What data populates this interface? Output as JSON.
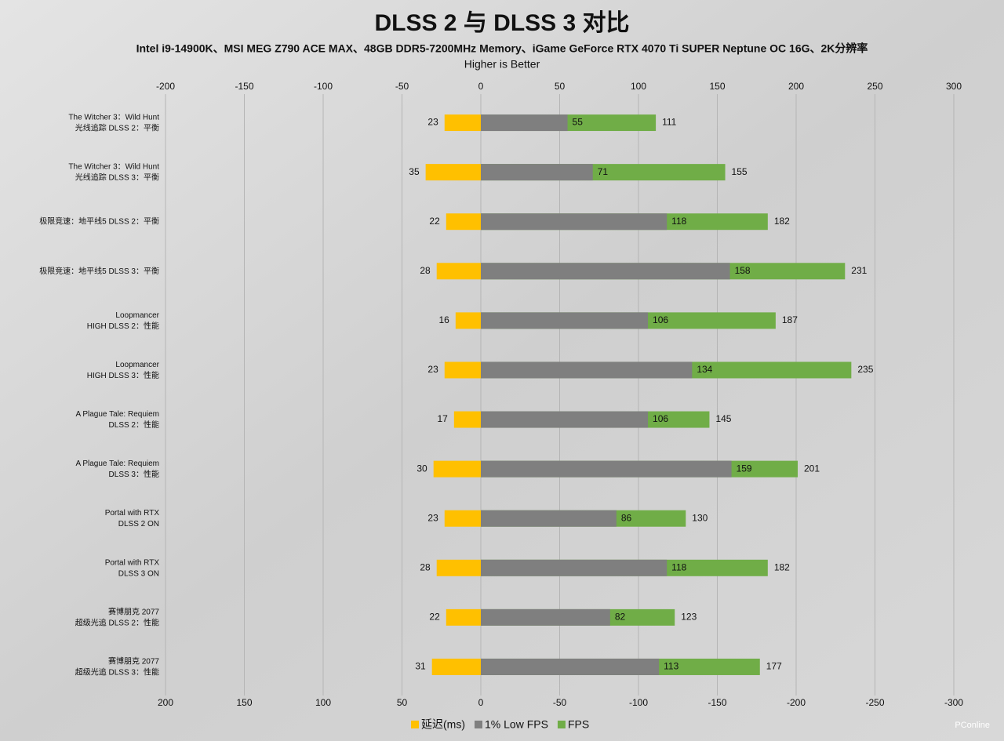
{
  "chart_data": {
    "type": "bar",
    "title": "DLSS 2 与 DLSS 3 对比",
    "subtitle": "Intel i9-14900K、MSI MEG Z790 ACE MAX、48GB DDR5-7200MHz Memory、iGame GeForce RTX 4070 Ti SUPER Neptune OC 16G、2K分辨率",
    "note": "Higher is Better",
    "watermark": "PConline",
    "categories": [
      "The Witcher 3：Wild Hunt\n光线追踪 DLSS 2：平衡",
      "The Witcher 3：Wild Hunt\n光线追踪 DLSS 3：平衡",
      "极限竞速：地平线5 DLSS 2：平衡",
      "极限竞速：地平线5 DLSS 3：平衡",
      "Loopmancer\nHIGH DLSS 2：性能",
      "Loopmancer\nHIGH DLSS 3：性能",
      "A Plague Tale: Requiem\nDLSS 2：性能",
      "A Plague Tale: Requiem\nDLSS 3：性能",
      "Portal with RTX\nDLSS 2 ON",
      "Portal with RTX\nDLSS 3 ON",
      "赛博朋克 2077\n超级光追 DLSS 2：性能",
      "赛博朋克 2077\n超级光追 DLSS 3：性能"
    ],
    "series": [
      {
        "name": "延迟(ms)",
        "color": "#ffc000",
        "axis": "x2",
        "values": [
          23,
          35,
          22,
          28,
          16,
          23,
          17,
          30,
          23,
          28,
          22,
          31
        ]
      },
      {
        "name": "1% Low FPS",
        "color": "#7f7f7f",
        "values": [
          55,
          71,
          118,
          158,
          106,
          134,
          106,
          159,
          86,
          118,
          82,
          113
        ]
      },
      {
        "name": "FPS",
        "color": "#70ad47",
        "values": [
          111,
          155,
          182,
          231,
          187,
          235,
          145,
          201,
          130,
          182,
          123,
          177
        ]
      }
    ],
    "xlim": [
      -200,
      300
    ],
    "xticks": [
      -200,
      -150,
      -100,
      -50,
      0,
      50,
      100,
      150,
      200,
      250,
      300
    ],
    "x2lim": [
      200,
      -300
    ],
    "x2ticks": [
      200,
      150,
      100,
      50,
      0,
      -50,
      -100,
      -150,
      -200,
      -250,
      -300
    ],
    "grid": true,
    "legend": "bottom"
  }
}
